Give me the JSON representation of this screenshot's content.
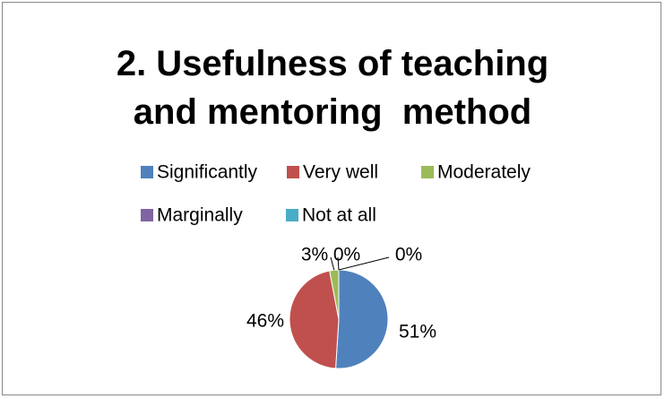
{
  "chart_data": {
    "type": "pie",
    "title": "2. Usefulness of teaching and mentoring  method",
    "categories": [
      "Significantly",
      "Very well",
      "Moderately",
      "Marginally",
      "Not at all"
    ],
    "values": [
      51,
      46,
      3,
      0,
      0
    ],
    "value_labels": [
      "51%",
      "46%",
      "3%",
      "0%",
      "0%"
    ],
    "colors": [
      "#4f81bd",
      "#c0504d",
      "#9bbb59",
      "#8064a2",
      "#4bacc6"
    ],
    "legend": "top"
  }
}
